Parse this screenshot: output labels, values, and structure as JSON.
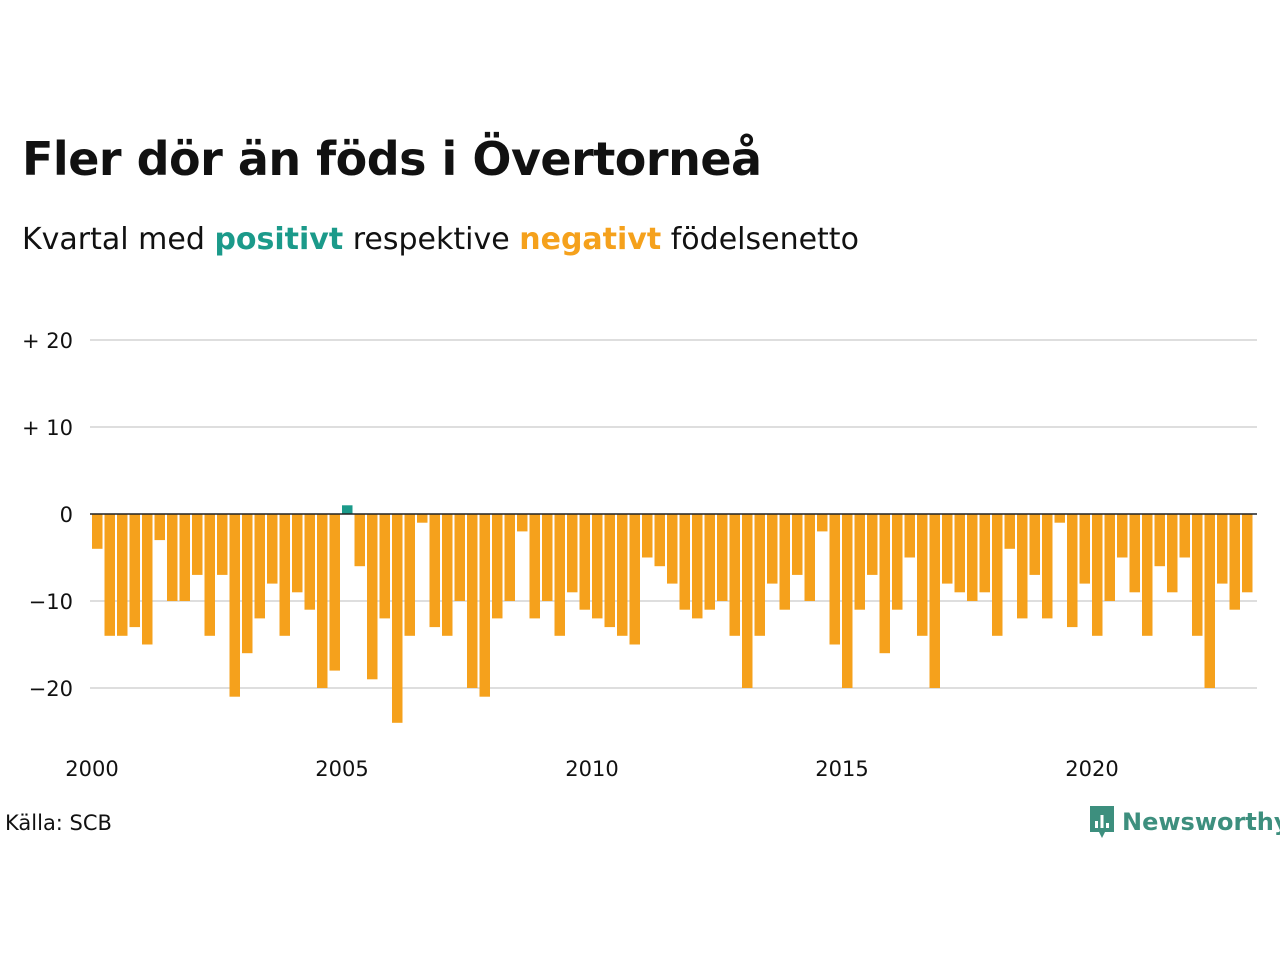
{
  "title": "Fler dör än föds i Övertorneå",
  "subtitle": {
    "prefix": "Kvartal med",
    "positive": "positivt",
    "middle": "respektive",
    "negative": "negativt",
    "suffix": "födelsenetto"
  },
  "source": "Källa: SCB",
  "brand": {
    "name": "Newsworthy",
    "icon": "newsworthy-logo-icon"
  },
  "colors": {
    "positive": "#1b9a8a",
    "negative": "#f5a11c",
    "grid": "#dedede",
    "text": "#111111",
    "brand": "#3d8f7e"
  },
  "chart_data": {
    "type": "bar",
    "x_axis": {
      "start": "2000 Q1",
      "interval": "quarter",
      "ticks": [
        2000,
        2005,
        2010,
        2015,
        2020
      ]
    },
    "y_axis": {
      "ticks": [
        20,
        10,
        0,
        -10,
        -20
      ],
      "tick_labels": [
        "+ 20",
        "+ 10",
        "0",
        "−10",
        "−20"
      ],
      "ylim": [
        -25,
        21
      ]
    },
    "grid": true,
    "legend": "none",
    "values": [
      -4,
      -14,
      -14,
      -13,
      -15,
      -3,
      -10,
      -10,
      -7,
      -14,
      -7,
      -21,
      -16,
      -12,
      -8,
      -14,
      -9,
      -11,
      -20,
      -18,
      1,
      -6,
      -19,
      -12,
      -24,
      -14,
      -1,
      -13,
      -14,
      -10,
      -20,
      -21,
      -12,
      -10,
      -2,
      -12,
      -10,
      -14,
      -9,
      -11,
      -12,
      -13,
      -14,
      -15,
      -5,
      -6,
      -8,
      -11,
      -12,
      -11,
      -10,
      -14,
      -20,
      -14,
      -8,
      -11,
      -7,
      -10,
      -2,
      -15,
      -20,
      -11,
      -7,
      -16,
      -11,
      -5,
      -14,
      -20,
      -8,
      -9,
      -10,
      -9,
      -14,
      -4,
      -12,
      -7,
      -12,
      -1,
      -13,
      -8,
      -14,
      -10,
      -5,
      -9,
      -14,
      -6,
      -9,
      -5,
      -14,
      -20,
      -8,
      -11,
      -9
    ]
  }
}
